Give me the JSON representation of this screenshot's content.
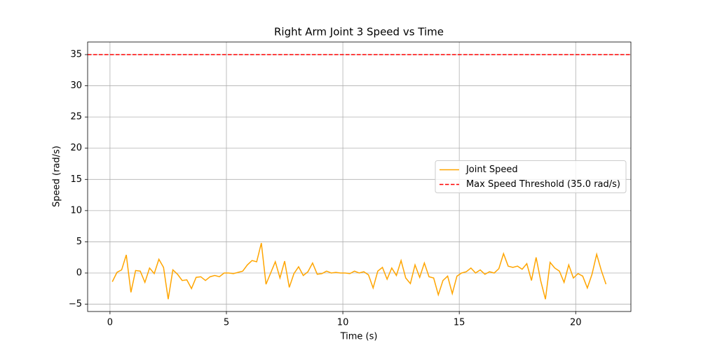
{
  "chart_data": {
    "type": "line",
    "title": "Right Arm Joint 3 Speed vs Time",
    "x_label": "Time (s)",
    "y_label": "Speed (rad/s)",
    "x": [
      0.1,
      0.3,
      0.5,
      0.7,
      0.9,
      1.1,
      1.3,
      1.5,
      1.7,
      1.9,
      2.1,
      2.3,
      2.5,
      2.7,
      2.9,
      3.1,
      3.3,
      3.5,
      3.7,
      3.9,
      4.1,
      4.3,
      4.5,
      4.7,
      4.9,
      5.1,
      5.3,
      5.5,
      5.7,
      5.9,
      6.1,
      6.3,
      6.5,
      6.7,
      6.9,
      7.1,
      7.3,
      7.5,
      7.7,
      7.9,
      8.1,
      8.3,
      8.5,
      8.7,
      8.9,
      9.1,
      9.3,
      9.5,
      9.7,
      9.9,
      10.1,
      10.3,
      10.5,
      10.7,
      10.9,
      11.1,
      11.3,
      11.5,
      11.7,
      11.9,
      12.1,
      12.3,
      12.5,
      12.7,
      12.9,
      13.1,
      13.3,
      13.5,
      13.7,
      13.9,
      14.1,
      14.3,
      14.5,
      14.7,
      14.9,
      15.1,
      15.3,
      15.5,
      15.7,
      15.9,
      16.1,
      16.3,
      16.5,
      16.7,
      16.9,
      17.1,
      17.3,
      17.5,
      17.7,
      17.9,
      18.1,
      18.3,
      18.5,
      18.7,
      18.9,
      19.1,
      19.3,
      19.5,
      19.7,
      19.9,
      20.1,
      20.3,
      20.5,
      20.7,
      20.9,
      21.1,
      21.3
    ],
    "series": [
      {
        "name": "Joint Speed",
        "color": "#ffa500",
        "values": [
          -1.4,
          0.1,
          0.5,
          2.9,
          -3.1,
          0.4,
          0.3,
          -1.5,
          0.8,
          -0.1,
          2.2,
          0.9,
          -4.2,
          0.5,
          -0.2,
          -1.2,
          -1.1,
          -2.5,
          -0.7,
          -0.6,
          -1.2,
          -0.6,
          -0.4,
          -0.6,
          0.0,
          0.0,
          -0.1,
          0.1,
          0.3,
          1.3,
          2.0,
          1.8,
          4.8,
          -1.8,
          0.0,
          1.8,
          -0.8,
          1.9,
          -2.3,
          -0.1,
          1.0,
          -0.4,
          0.2,
          1.6,
          -0.2,
          -0.1,
          0.3,
          0.0,
          0.1,
          0.0,
          0.0,
          -0.1,
          0.3,
          0.0,
          0.2,
          -0.3,
          -2.4,
          0.3,
          0.9,
          -1.0,
          0.8,
          -0.4,
          2.0,
          -0.8,
          -1.7,
          1.3,
          -0.7,
          1.6,
          -0.6,
          -0.8,
          -3.5,
          -1.2,
          -0.5,
          -3.3,
          -0.5,
          0.0,
          0.2,
          0.8,
          0.0,
          0.5,
          -0.2,
          0.2,
          0.0,
          0.7,
          3.1,
          1.1,
          0.9,
          1.1,
          0.6,
          1.5,
          -1.2,
          2.5,
          -1.3,
          -4.2,
          1.7,
          0.8,
          0.3,
          -1.5,
          1.3,
          -0.8,
          -0.1,
          -0.5,
          -2.4,
          -0.2,
          3.0,
          0.4,
          -1.8
        ]
      }
    ],
    "threshold": {
      "name": "Max Speed Threshold (35.0 rad/s)",
      "value": 35,
      "color": "#ff0000"
    },
    "xlim": [
      -0.96,
      22.37
    ],
    "ylim": [
      -6.17,
      37.02
    ],
    "xticks": [
      0,
      5,
      10,
      15,
      20
    ],
    "yticks": [
      {
        "value": -5,
        "label": "−5"
      },
      0,
      5,
      10,
      15,
      20,
      25,
      30,
      35
    ],
    "grid": true,
    "legend": "center right"
  }
}
